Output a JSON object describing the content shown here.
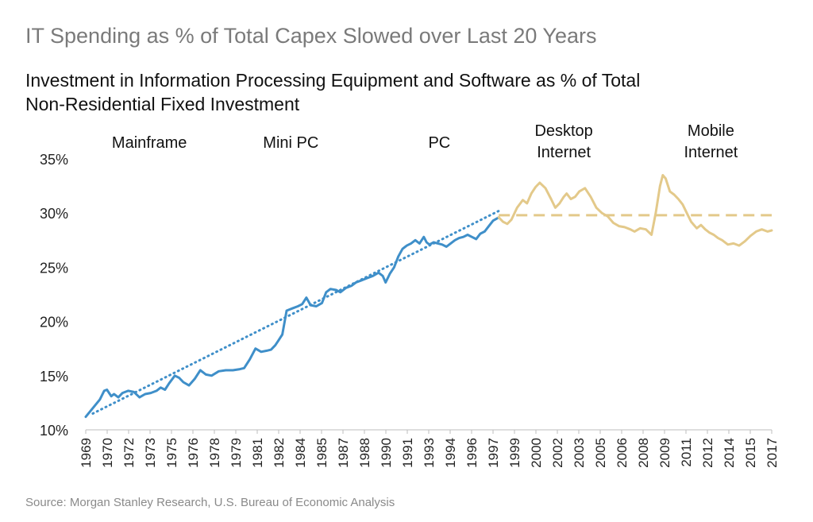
{
  "title": "IT Spending as % of Total Capex Slowed over Last 20 Years",
  "subtitle": "Investment in Information Processing Equipment and Software as % of Total Non-Residential Fixed Investment",
  "source": "Source: Morgan Stanley Research, U.S. Bureau of Economic Analysis",
  "chart_data": {
    "type": "line",
    "title": "Investment in Information Processing Equipment and Software as % of Total Non-Residential Fixed Investment",
    "xlabel": "",
    "ylabel": "",
    "ylim": [
      10,
      35
    ],
    "xlim": [
      1969,
      2017.5
    ],
    "y_ticks": [
      "10%",
      "15%",
      "20%",
      "25%",
      "30%",
      "35%"
    ],
    "x_ticks": [
      "1969",
      "1970",
      "1972",
      "1973",
      "1975",
      "1976",
      "1978",
      "1979",
      "1981",
      "1982",
      "1984",
      "1985",
      "1987",
      "1988",
      "1990",
      "1991",
      "1993",
      "1994",
      "1996",
      "1997",
      "1999",
      "2000",
      "2002",
      "2003",
      "2005",
      "2006",
      "2008",
      "2009",
      "2011",
      "2012",
      "2014",
      "2015",
      "2017"
    ],
    "grid": false,
    "legend": "none",
    "era_labels": [
      {
        "text": [
          "Mainframe"
        ],
        "x": 1973.5
      },
      {
        "text": [
          "Mini PC"
        ],
        "x": 1983.5
      },
      {
        "text": [
          "PC"
        ],
        "x": 1994.0
      },
      {
        "text": [
          "Desktop",
          "Internet"
        ],
        "x": 2002.8
      },
      {
        "text": [
          "Mobile",
          "Internet"
        ],
        "x": 2013.2
      }
    ],
    "series": [
      {
        "color": "#3f8fc9",
        "style": "solid",
        "x": [
          1969.0,
          1969.5,
          1970.0,
          1970.3,
          1970.5,
          1970.8,
          1971.0,
          1971.3,
          1971.6,
          1972.0,
          1972.4,
          1972.8,
          1973.2,
          1973.6,
          1974.0,
          1974.3,
          1974.6,
          1974.9,
          1975.3,
          1975.6,
          1975.9,
          1976.3,
          1976.7,
          1977.1,
          1977.5,
          1977.9,
          1978.4,
          1978.9,
          1979.4,
          1979.9,
          1980.2,
          1980.6,
          1981.0,
          1981.4,
          1981.8,
          1982.1,
          1982.4,
          1982.6,
          1982.9,
          1983.2,
          1983.6,
          1984.0,
          1984.3,
          1984.6,
          1984.9,
          1985.3,
          1985.7,
          1986.0,
          1986.3,
          1986.7,
          1987.0,
          1987.4,
          1987.8,
          1988.1,
          1988.5,
          1988.9,
          1989.3,
          1989.7,
          1990.0,
          1990.2,
          1990.5,
          1990.8,
          1991.1,
          1991.4,
          1991.7,
          1992.0,
          1992.3,
          1992.6,
          1992.9,
          1993.1,
          1993.3,
          1993.6,
          1993.9,
          1994.2,
          1994.5,
          1994.8,
          1995.1,
          1995.4,
          1995.7,
          1996.0,
          1996.3,
          1996.6,
          1996.9,
          1997.2,
          1997.5,
          1997.8,
          1998.2
        ],
        "values": [
          11.2,
          12.0,
          12.8,
          13.6,
          13.7,
          13.1,
          13.3,
          13.0,
          13.4,
          13.6,
          13.5,
          13.0,
          13.3,
          13.4,
          13.6,
          13.9,
          13.7,
          14.3,
          15.0,
          14.8,
          14.4,
          14.1,
          14.7,
          15.5,
          15.1,
          15.0,
          15.4,
          15.5,
          15.5,
          15.6,
          15.7,
          16.5,
          17.5,
          17.2,
          17.3,
          17.4,
          17.8,
          18.2,
          18.8,
          21.0,
          21.2,
          21.4,
          21.6,
          22.2,
          21.5,
          21.4,
          21.7,
          22.7,
          23.0,
          22.9,
          22.7,
          23.1,
          23.3,
          23.6,
          23.8,
          24.0,
          24.2,
          24.5,
          24.2,
          23.6,
          24.4,
          25.0,
          26.0,
          26.7,
          27.0,
          27.2,
          27.5,
          27.2,
          27.8,
          27.3,
          27.1,
          27.3,
          27.2,
          27.1,
          26.9,
          27.2,
          27.5,
          27.7,
          27.8,
          28.0,
          27.8,
          27.6,
          28.1,
          28.3,
          28.8,
          29.3,
          29.6
        ]
      },
      {
        "color": "#e3c98a",
        "style": "solid",
        "x": [
          1998.2,
          1998.5,
          1998.8,
          1999.1,
          1999.5,
          1999.9,
          2000.2,
          2000.5,
          2000.8,
          2001.1,
          2001.5,
          2001.9,
          2002.2,
          2002.5,
          2002.8,
          2003.0,
          2003.3,
          2003.6,
          2003.9,
          2004.3,
          2004.7,
          2005.1,
          2005.5,
          2005.9,
          2006.3,
          2006.7,
          2007.1,
          2007.5,
          2007.8,
          2008.2,
          2008.6,
          2009.0,
          2009.3,
          2009.6,
          2009.8,
          2010.0,
          2010.3,
          2010.6,
          2010.9,
          2011.2,
          2011.5,
          2011.8,
          2012.2,
          2012.5,
          2012.8,
          2013.1,
          2013.4,
          2013.7,
          2014.0,
          2014.4,
          2014.8,
          2015.2,
          2015.6,
          2016.0,
          2016.4,
          2016.8,
          2017.2,
          2017.5
        ],
        "values": [
          29.6,
          29.2,
          29.0,
          29.4,
          30.5,
          31.2,
          30.9,
          31.8,
          32.4,
          32.8,
          32.3,
          31.3,
          30.5,
          30.9,
          31.5,
          31.8,
          31.3,
          31.5,
          32.0,
          32.3,
          31.5,
          30.5,
          30.0,
          29.7,
          29.1,
          28.8,
          28.7,
          28.5,
          28.3,
          28.6,
          28.5,
          28.0,
          30.0,
          32.5,
          33.5,
          33.2,
          32.0,
          31.7,
          31.3,
          30.8,
          30.0,
          29.2,
          28.6,
          28.9,
          28.5,
          28.2,
          28.0,
          27.7,
          27.5,
          27.1,
          27.2,
          27.0,
          27.4,
          27.9,
          28.3,
          28.5,
          28.3,
          28.4
        ]
      },
      {
        "color": "#3f8fc9",
        "style": "dotted",
        "x": [
          1969.5,
          1998.2
        ],
        "values": [
          11.5,
          30.2
        ]
      },
      {
        "color": "#e3c98a",
        "style": "dashed",
        "x": [
          1998.2,
          2017.5
        ],
        "values": [
          29.8,
          29.8
        ]
      }
    ]
  }
}
